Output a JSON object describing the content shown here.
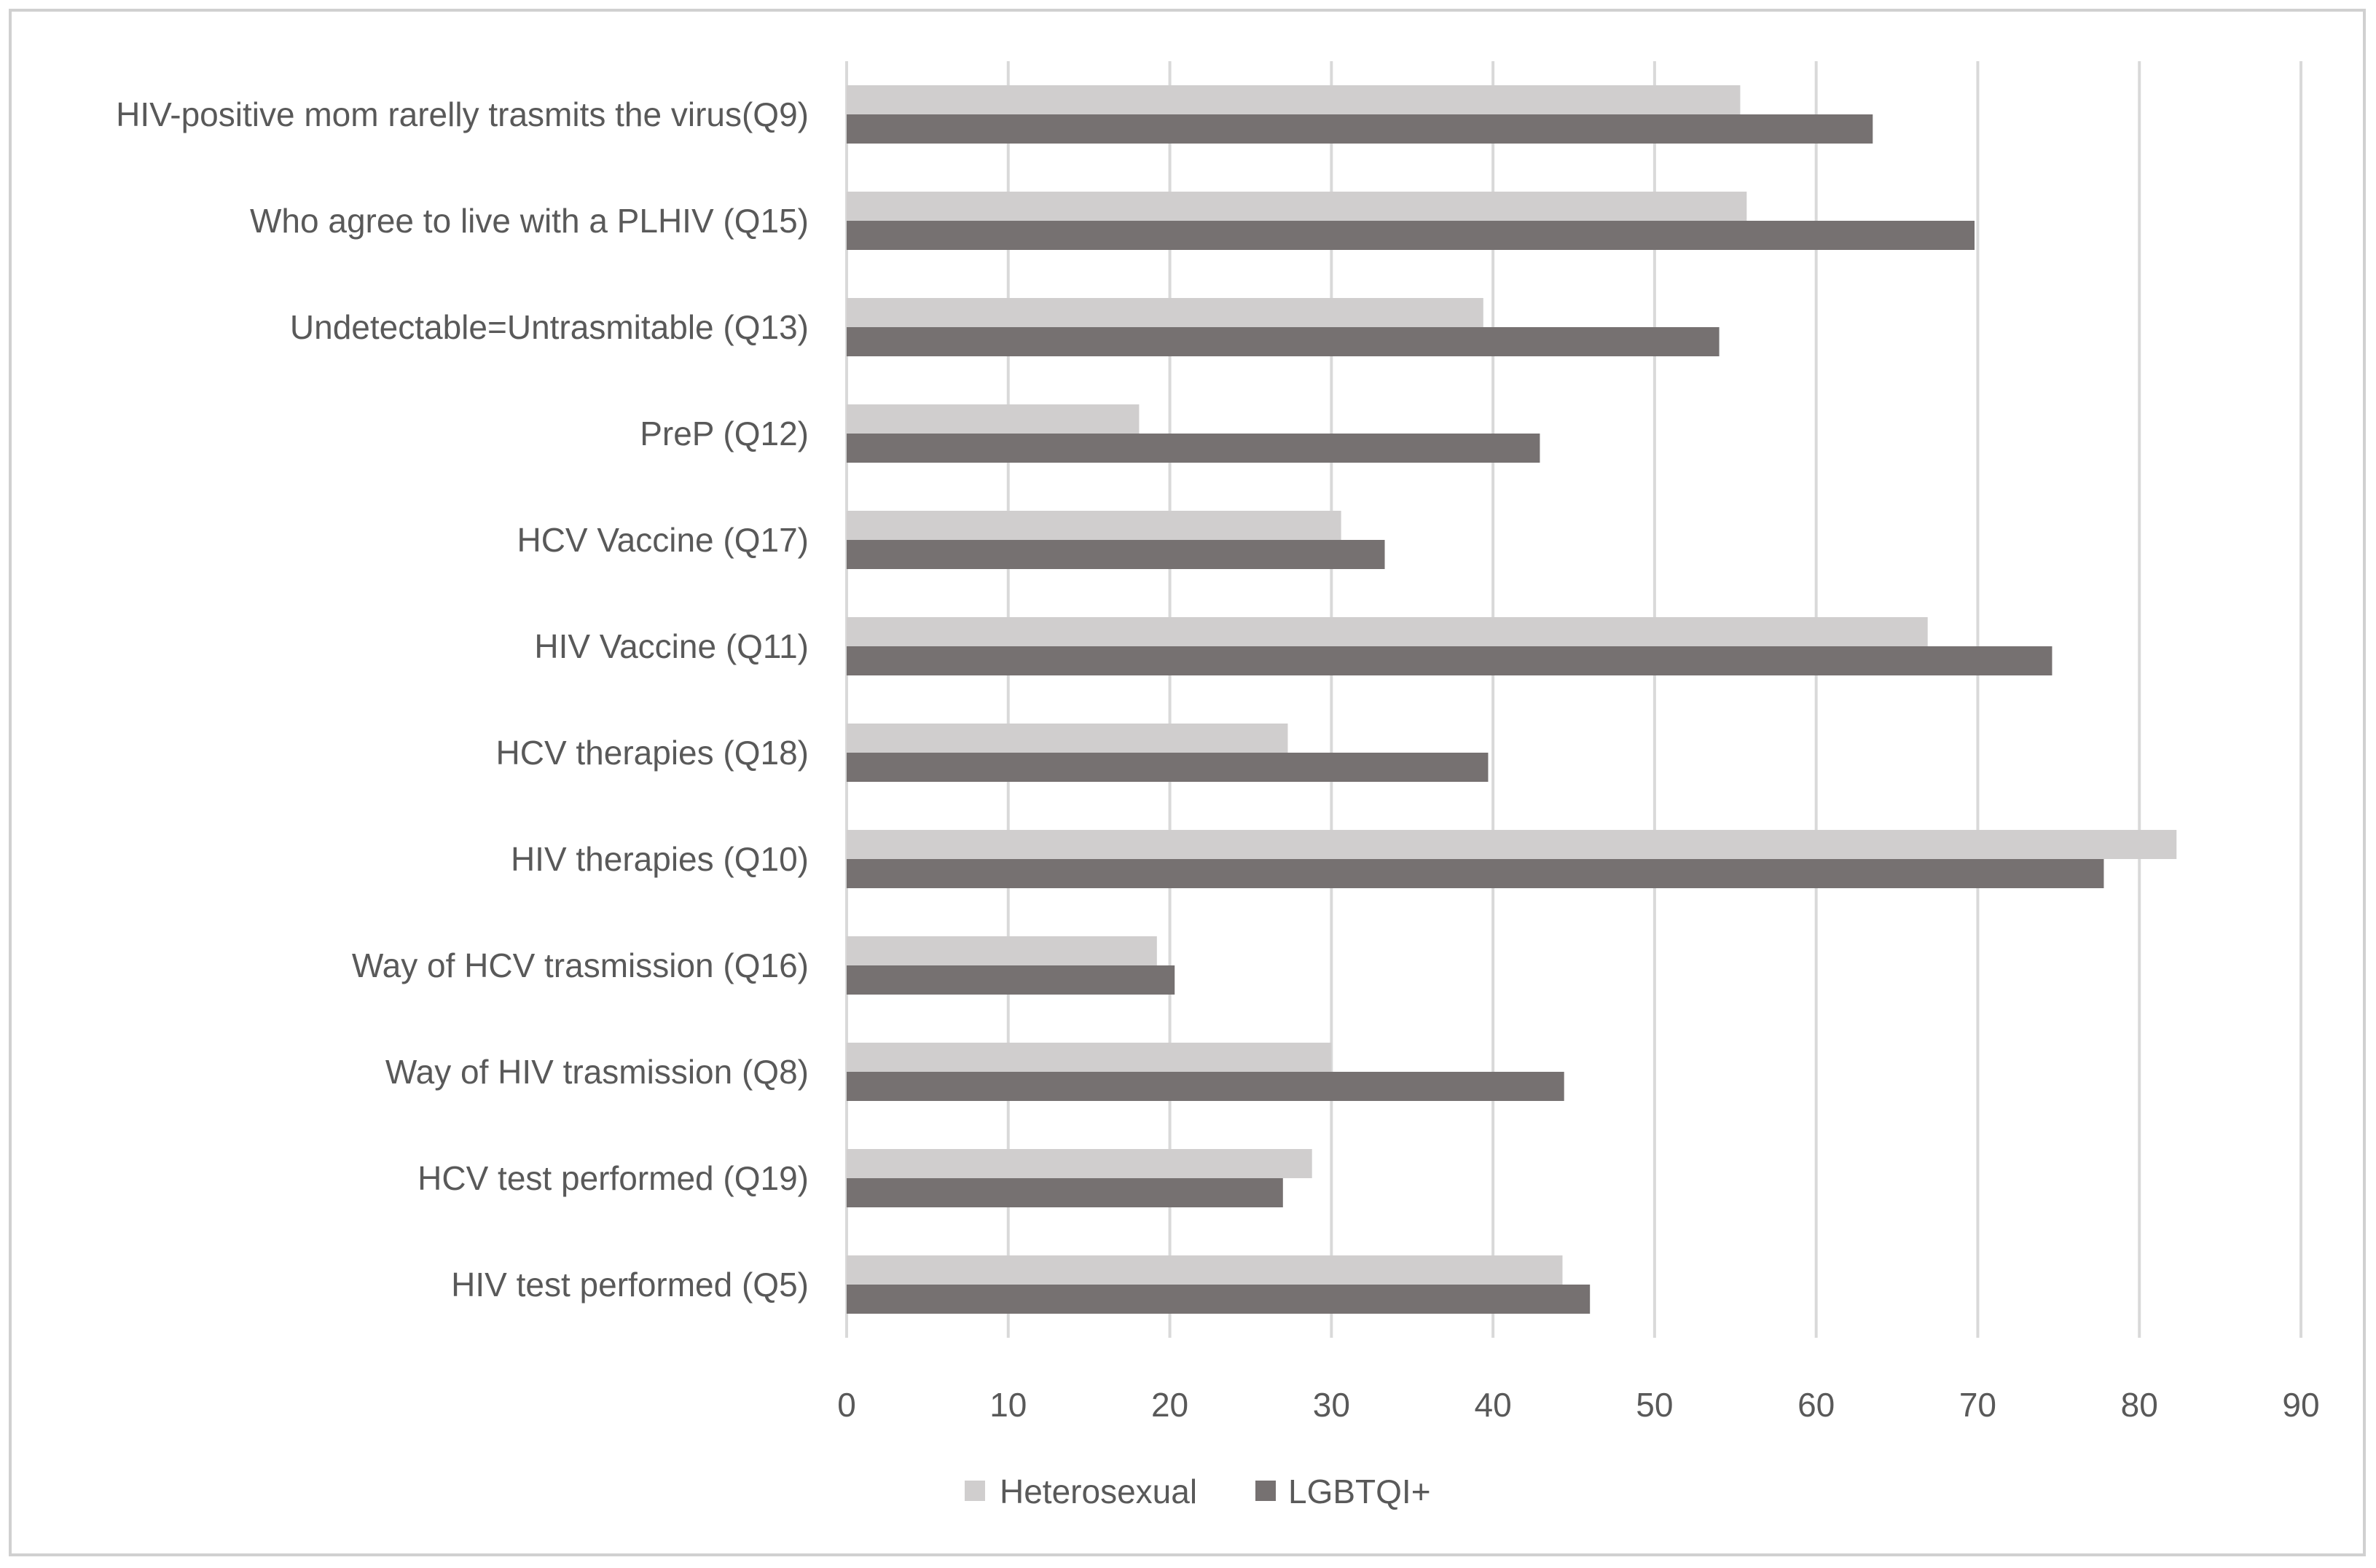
{
  "chart_data": {
    "type": "bar",
    "orientation": "horizontal",
    "title": "",
    "xlabel": "",
    "ylabel": "",
    "xlim": [
      0,
      90
    ],
    "ticks": [
      0,
      10,
      20,
      30,
      40,
      50,
      60,
      70,
      80,
      90
    ],
    "grid": "vertical",
    "legend_position": "bottom",
    "categories": [
      "HIV-positive mom rarelly trasmits the virus(Q9)",
      "Who agree to live with a PLHIV (Q15)",
      "Undetectable=Untrasmitable (Q13)",
      "PreP (Q12)",
      "HCV Vaccine (Q17)",
      "HIV Vaccine (Q11)",
      "HCV therapies (Q18)",
      "HIV therapies (Q10)",
      "Way of HCV trasmission (Q16)",
      "Way of HIV trasmission (Q8)",
      "HCV test performed (Q19)",
      "HIV test performed (Q5)"
    ],
    "series": [
      {
        "name": "Heterosexual",
        "color": "#d0cece",
        "values": [
          55.3,
          55.7,
          39.4,
          18.1,
          30.6,
          66.9,
          27.3,
          82.3,
          19.2,
          30.0,
          28.8,
          44.3
        ]
      },
      {
        "name": "LGBTQI+",
        "color": "#767171",
        "values": [
          63.5,
          69.8,
          54.0,
          42.9,
          33.3,
          74.6,
          39.7,
          77.8,
          20.3,
          44.4,
          27.0,
          46.0
        ]
      }
    ]
  }
}
